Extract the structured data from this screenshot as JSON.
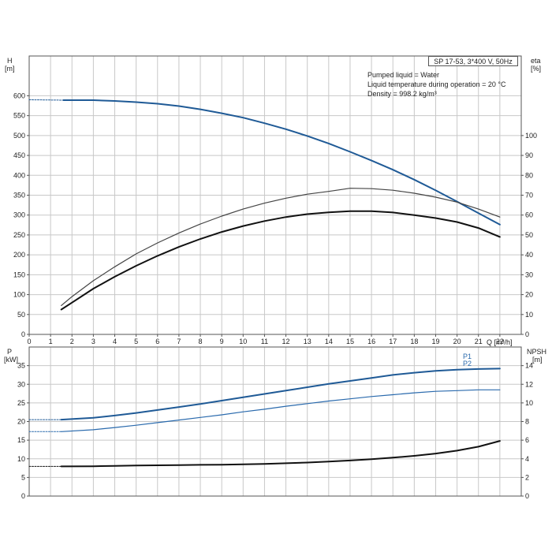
{
  "header": {
    "pump_model": "SP 17-53, 3*400 V, 50Hz",
    "pumped_liquid": "Pumped liquid = Water",
    "liquid_temperature": "Liquid temperature during operation = 20 °C",
    "density": "Density = 998.2 kg/m³"
  },
  "chart_data": [
    {
      "type": "line",
      "panel": "head-efficiency",
      "xlabel": "Q [m³/h]",
      "ylabel_left": [
        "H",
        "[m]"
      ],
      "ylabel_right": [
        "eta",
        "[%]"
      ],
      "xlim": [
        0,
        23
      ],
      "ylim": [
        0,
        700
      ],
      "y2lim": [
        0,
        140
      ],
      "x_ticks": [
        0,
        1,
        2,
        3,
        4,
        5,
        6,
        7,
        8,
        9,
        10,
        11,
        12,
        13,
        14,
        15,
        16,
        17,
        18,
        19,
        20,
        21,
        22
      ],
      "x_tick_labels": [
        "0",
        "1",
        "2",
        "3",
        "4",
        "5",
        "6",
        "7",
        "8",
        "9",
        "10",
        "11",
        "12",
        "13",
        "14",
        "15",
        "16",
        "17",
        "18",
        "19",
        "20",
        "21",
        "22"
      ],
      "y_ticks": [
        0,
        50,
        100,
        150,
        200,
        250,
        300,
        350,
        400,
        450,
        500,
        550,
        600
      ],
      "y2_ticks": [
        0,
        10,
        20,
        30,
        40,
        50,
        60,
        70,
        80,
        90,
        100
      ],
      "grid": true,
      "series": [
        {
          "role": "head",
          "axis": "left",
          "color": "#1f5a96",
          "x": [
            1.6,
            3,
            4,
            5,
            6,
            7,
            8,
            9,
            10,
            11,
            12,
            13,
            14,
            15,
            16,
            17,
            18,
            19,
            20,
            21,
            22
          ],
          "y": [
            589,
            589,
            587,
            584,
            580,
            574,
            566,
            556,
            545,
            531,
            516,
            499,
            480,
            459,
            437,
            414,
            389,
            362,
            334,
            305,
            276
          ]
        },
        {
          "role": "head-dashed-extension",
          "axis": "left",
          "color": "#1f5a96",
          "dashed": true,
          "x": [
            0,
            1.6
          ],
          "y": [
            590,
            589
          ]
        },
        {
          "role": "efficiency-1",
          "axis": "right",
          "color": "#444444",
          "x": [
            1.5,
            2,
            3,
            4,
            5,
            6,
            7,
            8,
            9,
            10,
            11,
            12,
            13,
            14,
            15,
            16,
            17,
            18,
            19,
            20,
            21,
            22
          ],
          "y": [
            14.5,
            19,
            27,
            34,
            40.5,
            46,
            51,
            55.5,
            59.5,
            63,
            66,
            68.5,
            70.5,
            71.9,
            73.5,
            73.3,
            72.5,
            71,
            69,
            66.5,
            63,
            59
          ]
        },
        {
          "role": "efficiency-2",
          "axis": "right",
          "color": "#111111",
          "x": [
            1.5,
            2,
            3,
            4,
            5,
            6,
            7,
            8,
            9,
            10,
            11,
            12,
            13,
            14,
            15,
            16,
            17,
            18,
            19,
            20,
            21,
            22
          ],
          "y": [
            12.5,
            16,
            23,
            29,
            34.5,
            39.5,
            44,
            48,
            51.5,
            54.5,
            57,
            59,
            60.5,
            61.4,
            62,
            62,
            61.3,
            60,
            58.5,
            56.5,
            53.5,
            49
          ]
        }
      ]
    },
    {
      "type": "line",
      "panel": "power-npsh",
      "ylabel_left": [
        "P",
        "[kW]"
      ],
      "ylabel_right": [
        "NPSH",
        "[m]"
      ],
      "xlim": [
        0,
        23
      ],
      "ylim": [
        0,
        40
      ],
      "y2lim": [
        0,
        16
      ],
      "y_ticks": [
        0,
        5,
        10,
        15,
        20,
        25,
        30,
        35
      ],
      "y2_ticks": [
        0,
        2,
        4,
        6,
        8,
        10,
        12,
        14
      ],
      "grid": true,
      "series": [
        {
          "name": "P1",
          "axis": "left",
          "color": "#1f5a96",
          "x": [
            1.5,
            3,
            4,
            5,
            6,
            7,
            8,
            9,
            10,
            11,
            12,
            13,
            14,
            15,
            16,
            17,
            18,
            19,
            20,
            21,
            22
          ],
          "y": [
            20.5,
            21,
            21.6,
            22.3,
            23.1,
            23.9,
            24.7,
            25.6,
            26.5,
            27.4,
            28.3,
            29.2,
            30.1,
            30.9,
            31.7,
            32.5,
            33.1,
            33.6,
            33.9,
            34.1,
            34.2
          ]
        },
        {
          "role": "p1-dashed-extension",
          "axis": "left",
          "color": "#1f5a96",
          "dashed": true,
          "x": [
            0,
            1.5
          ],
          "y": [
            20.5,
            20.5
          ]
        },
        {
          "name": "P2",
          "axis": "left",
          "color": "#2a6aad",
          "x": [
            1.5,
            3,
            4,
            5,
            6,
            7,
            8,
            9,
            10,
            11,
            12,
            13,
            14,
            15,
            16,
            17,
            18,
            19,
            20,
            21,
            22
          ],
          "y": [
            17.3,
            17.8,
            18.4,
            19,
            19.7,
            20.4,
            21.1,
            21.8,
            22.6,
            23.3,
            24.1,
            24.8,
            25.5,
            26.1,
            26.7,
            27.2,
            27.7,
            28.1,
            28.3,
            28.5,
            28.5
          ]
        },
        {
          "role": "p2-dashed-extension",
          "axis": "left",
          "color": "#2a6aad",
          "dashed": true,
          "x": [
            0,
            1.5
          ],
          "y": [
            17.3,
            17.3
          ]
        },
        {
          "role": "npsh",
          "axis": "right",
          "color": "#111111",
          "x": [
            1.5,
            3,
            4,
            5,
            6,
            7,
            8,
            9,
            10,
            11,
            12,
            13,
            14,
            15,
            16,
            17,
            18,
            19,
            20,
            21,
            22
          ],
          "y": [
            3.18,
            3.2,
            3.24,
            3.28,
            3.3,
            3.33,
            3.35,
            3.37,
            3.4,
            3.45,
            3.52,
            3.6,
            3.7,
            3.82,
            3.96,
            4.12,
            4.32,
            4.56,
            4.88,
            5.3,
            5.92
          ]
        },
        {
          "role": "npsh-dashed-extension",
          "axis": "right",
          "color": "#111111",
          "dashed": true,
          "x": [
            0,
            1.5
          ],
          "y": [
            3.18,
            3.18
          ]
        }
      ]
    }
  ]
}
